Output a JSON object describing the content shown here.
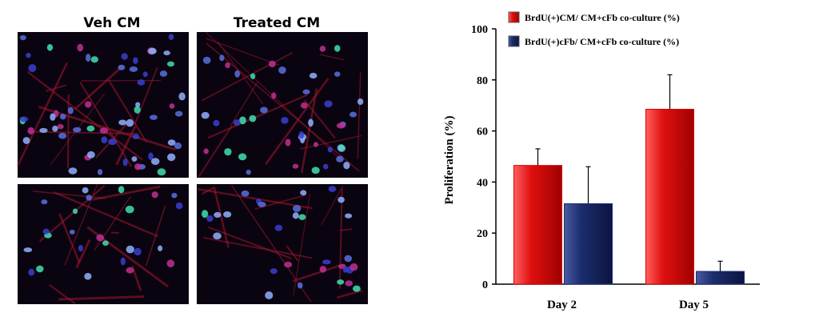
{
  "image_panel_labels": [
    "Veh CM",
    "Treated CM"
  ],
  "chart_data": {
    "type": "bar",
    "y_label": "Proliferation (%)",
    "categories": [
      "Day 2",
      "Day 5"
    ],
    "series": [
      {
        "name": "BrdU(+)CM/ CM+cFb co-culture (%)",
        "color": "#d40000",
        "values": [
          46.5,
          68.5
        ],
        "errors": [
          6.5,
          13.5
        ]
      },
      {
        "name": "BrdU(+)cFb/ CM+cFb co-culture (%)",
        "color": "#1c2d6e",
        "values": [
          31.5,
          5
        ],
        "errors": [
          14.5,
          4
        ]
      }
    ],
    "ylim": [
      0,
      100
    ],
    "yticks": [
      0,
      20,
      40,
      60,
      80,
      100
    ],
    "legend": "top"
  }
}
